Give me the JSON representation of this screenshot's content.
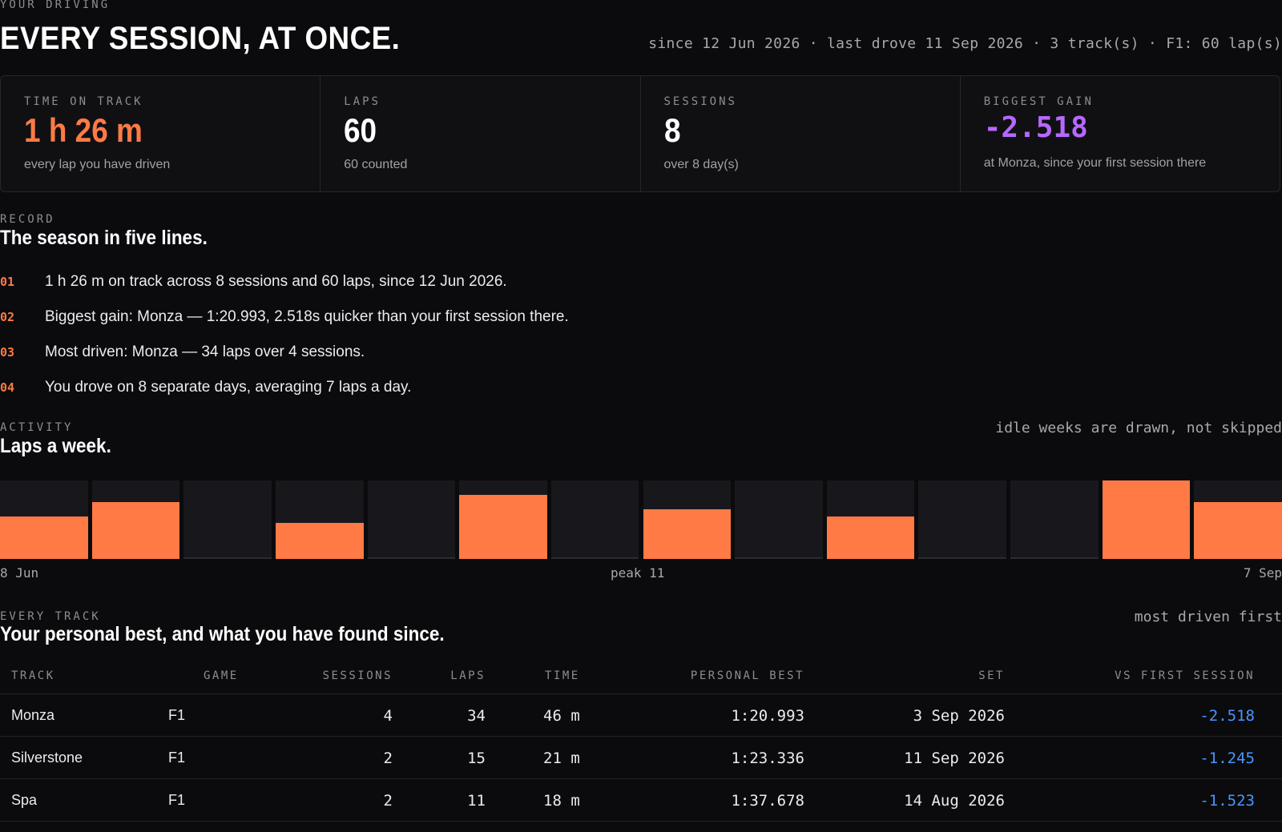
{
  "header": {
    "eyebrow": "YOUR DRIVING",
    "title": "EVERY SESSION, AT ONCE.",
    "meta": "since 12 Jun 2026 · last drove 11 Sep 2026 · 3 track(s) · F1: 60 lap(s)"
  },
  "stats": [
    {
      "label": "TIME ON TRACK",
      "value": "1 h 26 m",
      "sub": "every lap you have driven"
    },
    {
      "label": "LAPS",
      "value": "60",
      "sub": "60 counted"
    },
    {
      "label": "SESSIONS",
      "value": "8",
      "sub": "over 8 day(s)"
    },
    {
      "label": "BIGGEST GAIN",
      "value": "-2.518",
      "sub": "at Monza, since your first session there"
    }
  ],
  "record": {
    "eyebrow": "RECORD",
    "title": "The season in five lines.",
    "lines": [
      {
        "num": "01",
        "text": "1 h 26 m on track across 8 sessions and 60 laps, since 12 Jun 2026."
      },
      {
        "num": "02",
        "text": "Biggest gain: Monza — 1:20.993, 2.518s quicker than your first session there."
      },
      {
        "num": "03",
        "text": "Most driven: Monza — 34 laps over 4 sessions."
      },
      {
        "num": "04",
        "text": "You drove on 8 separate days, averaging 7 laps a day."
      }
    ]
  },
  "activity": {
    "eyebrow": "ACTIVITY",
    "title": "Laps a week.",
    "note": "idle weeks are drawn, not skipped",
    "start_label": "8 Jun",
    "peak_label": "peak 11",
    "end_label": "7 Sep"
  },
  "chart_data": {
    "type": "bar",
    "categories": [
      "w1",
      "w2",
      "w3",
      "w4",
      "w5",
      "w6",
      "w7",
      "w8",
      "w9",
      "w10",
      "w11",
      "w12",
      "w13",
      "w14"
    ],
    "values": [
      6,
      8,
      0,
      5,
      0,
      9,
      0,
      7,
      0,
      6,
      0,
      0,
      11,
      8
    ],
    "ylim": [
      0,
      11
    ],
    "xlabel_start": "8 Jun",
    "xlabel_end": "7 Sep",
    "annotation": "peak 11",
    "colors": {
      "bar": "#ff7a45",
      "slot": "#18181c"
    }
  },
  "tracks": {
    "eyebrow": "EVERY TRACK",
    "title": "Your personal best, and what you have found since.",
    "note": "most driven first",
    "columns": {
      "track": "TRACK",
      "game": "GAME",
      "sessions": "SESSIONS",
      "laps": "LAPS",
      "time": "TIME",
      "pb": "PERSONAL BEST",
      "set": "SET",
      "vs": "VS FIRST SESSION"
    },
    "rows": [
      {
        "track": "Monza",
        "game": "F1",
        "sessions": "4",
        "laps": "34",
        "time": "46 m",
        "pb": "1:20.993",
        "set": "3 Sep 2026",
        "vs": "-2.518"
      },
      {
        "track": "Silverstone",
        "game": "F1",
        "sessions": "2",
        "laps": "15",
        "time": "21 m",
        "pb": "1:23.336",
        "set": "11 Sep 2026",
        "vs": "-1.245"
      },
      {
        "track": "Spa",
        "game": "F1",
        "sessions": "2",
        "laps": "11",
        "time": "18 m",
        "pb": "1:37.678",
        "set": "14 Aug 2026",
        "vs": "-1.523"
      }
    ]
  },
  "colors": {
    "accent": "#ff7a45",
    "gain": "#b768ff",
    "delta": "#4b94ff",
    "background": "#0b0b0d"
  }
}
